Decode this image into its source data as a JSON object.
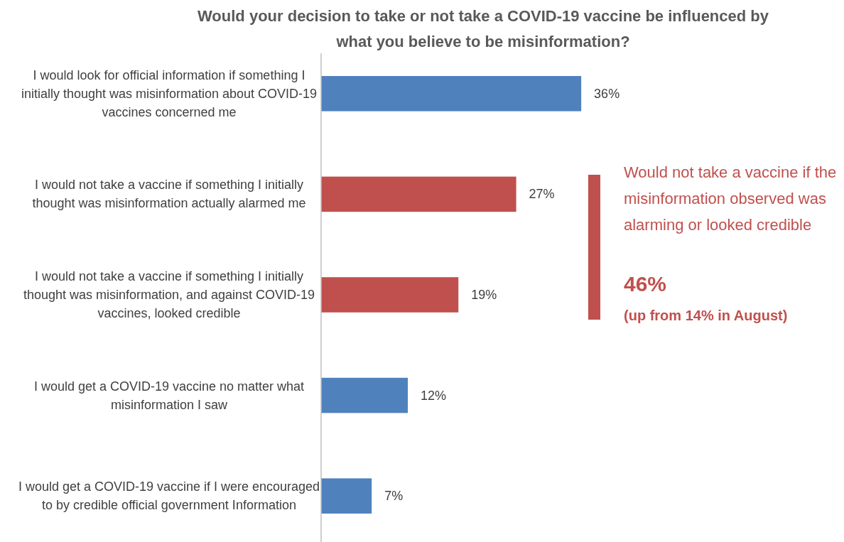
{
  "chart_data": {
    "type": "bar",
    "orientation": "horizontal",
    "title": "Would your decision to take or not take a COVID-19 vaccine be influenced by what you believe to be misinformation?",
    "categories": [
      "I would look for official information if something I initially thought was misinformation about COVID-19 vaccines concerned me",
      "I would not take a vaccine if something I initially thought was misinformation actually alarmed me",
      "I would not take a vaccine if something I initially thought was misinformation, and against COVID-19 vaccines, looked credible",
      "I would get a COVID-19 vaccine no matter what misinformation I saw",
      "I would get a COVID-19 vaccine if I were encouraged to by credible official government Information"
    ],
    "values": [
      36,
      27,
      19,
      12,
      7
    ],
    "colors": [
      "#4f81bd",
      "#c0504d",
      "#c0504d",
      "#4f81bd",
      "#4f81bd"
    ],
    "value_labels": [
      "36%",
      "27%",
      "19%",
      "12%",
      "7%"
    ],
    "annotations": [
      "Would not take a vaccine if the misinformation observed was alarming or looked credible",
      "46%",
      "(up from 14% in August)"
    ]
  }
}
